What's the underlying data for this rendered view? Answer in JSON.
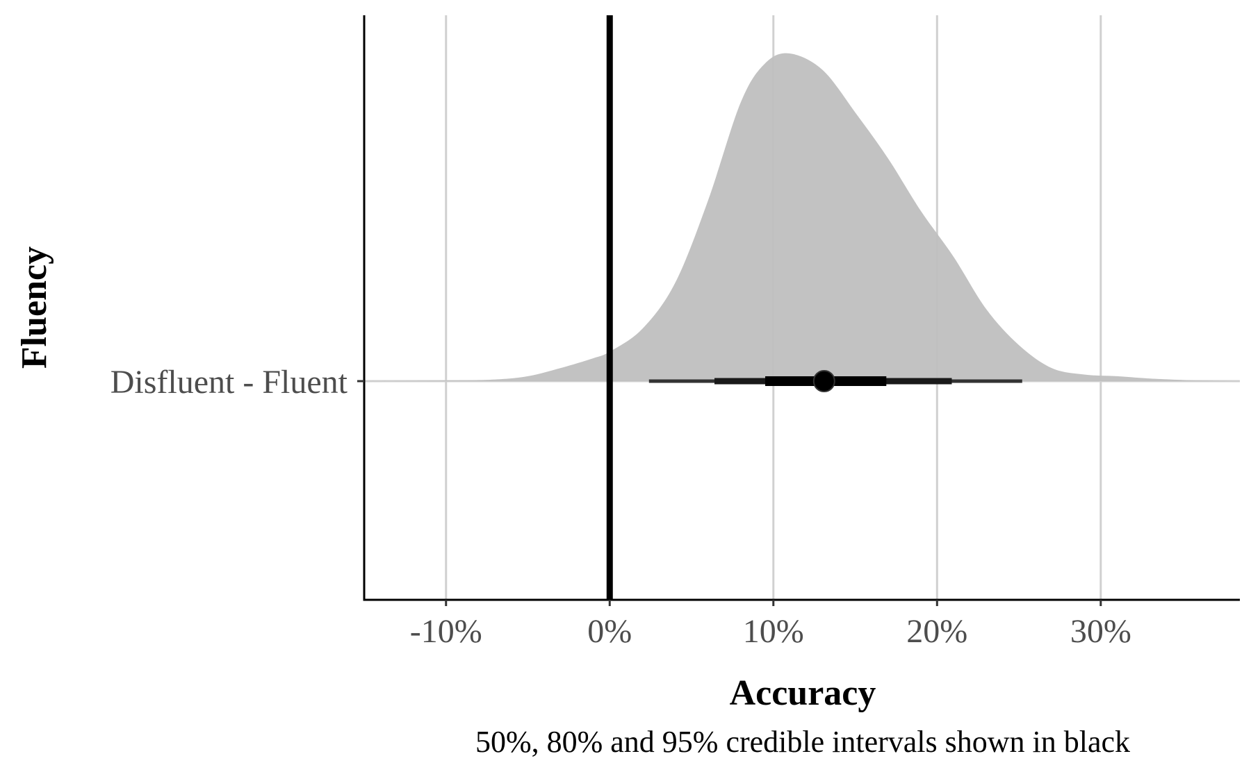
{
  "chart_data": {
    "type": "area",
    "xlabel": "Accuracy",
    "ylabel": "Fluency",
    "caption": "50%, 80% and 95% credible intervals shown in black",
    "categories": [
      "Disfluent - Fluent"
    ],
    "xlim": [
      -0.15,
      0.385
    ],
    "x_ticks": [
      -0.1,
      0,
      0.1,
      0.2,
      0.3
    ],
    "x_tick_labels": [
      "-10%",
      "0%",
      "10%",
      "20%",
      "30%"
    ],
    "reference_line_x": 0,
    "grid": "vertical major",
    "density": {
      "x": [
        -0.15,
        -0.1,
        -0.07,
        -0.05,
        -0.03,
        -0.01,
        0.0,
        0.02,
        0.04,
        0.06,
        0.08,
        0.095,
        0.11,
        0.13,
        0.15,
        0.17,
        0.19,
        0.21,
        0.23,
        0.25,
        0.27,
        0.29,
        0.31,
        0.33,
        0.36,
        0.385
      ],
      "y": [
        0.0,
        0.002,
        0.005,
        0.015,
        0.04,
        0.07,
        0.09,
        0.16,
        0.3,
        0.55,
        0.85,
        0.97,
        1.0,
        0.95,
        0.82,
        0.68,
        0.52,
        0.38,
        0.22,
        0.11,
        0.04,
        0.02,
        0.015,
        0.008,
        0.002,
        0.0
      ]
    },
    "point_estimate": 0.131,
    "intervals": [
      {
        "level": "95%",
        "low": 0.024,
        "high": 0.252
      },
      {
        "level": "80%",
        "low": 0.064,
        "high": 0.209
      },
      {
        "level": "50%",
        "low": 0.095,
        "high": 0.169
      }
    ]
  }
}
